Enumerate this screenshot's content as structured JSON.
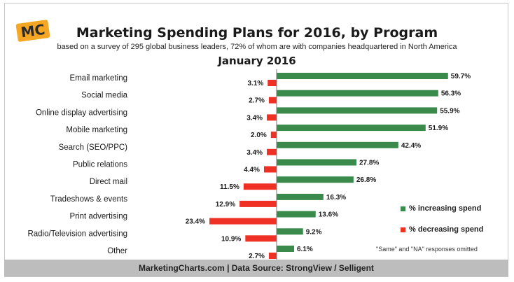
{
  "logo": "MC",
  "title": "Marketing Spending Plans for 2016, by Program",
  "subtitle": "based on a survey of 295 global business leaders, 72% of whom are with companies headquartered in North America",
  "date": "January 2016",
  "footer": "MarketingCharts.com | Data Source: StrongView / Selligent",
  "note": "\"Same\" and \"NA\" responses omitted",
  "colors": {
    "increase": "#3a8a4c",
    "decrease": "#ee3124"
  },
  "chart_data": {
    "type": "bar",
    "orientation": "horizontal",
    "categories": [
      "Email marketing",
      "Social media",
      "Online display advertising",
      "Mobile marketing",
      "Search (SEO/PPC)",
      "Public relations",
      "Direct mail",
      "Tradeshows & events",
      "Print advertising",
      "Radio/Television advertising",
      "Other"
    ],
    "series": [
      {
        "name": "% increasing spend",
        "values": [
          59.7,
          56.3,
          55.9,
          51.9,
          42.4,
          27.8,
          26.8,
          16.3,
          13.6,
          9.2,
          6.1
        ]
      },
      {
        "name": "% decreasing spend",
        "values": [
          3.1,
          2.7,
          3.4,
          2.0,
          3.4,
          4.4,
          11.5,
          12.9,
          23.4,
          10.9,
          2.7
        ]
      }
    ],
    "legend_position": "bottom-right",
    "grid": false
  }
}
